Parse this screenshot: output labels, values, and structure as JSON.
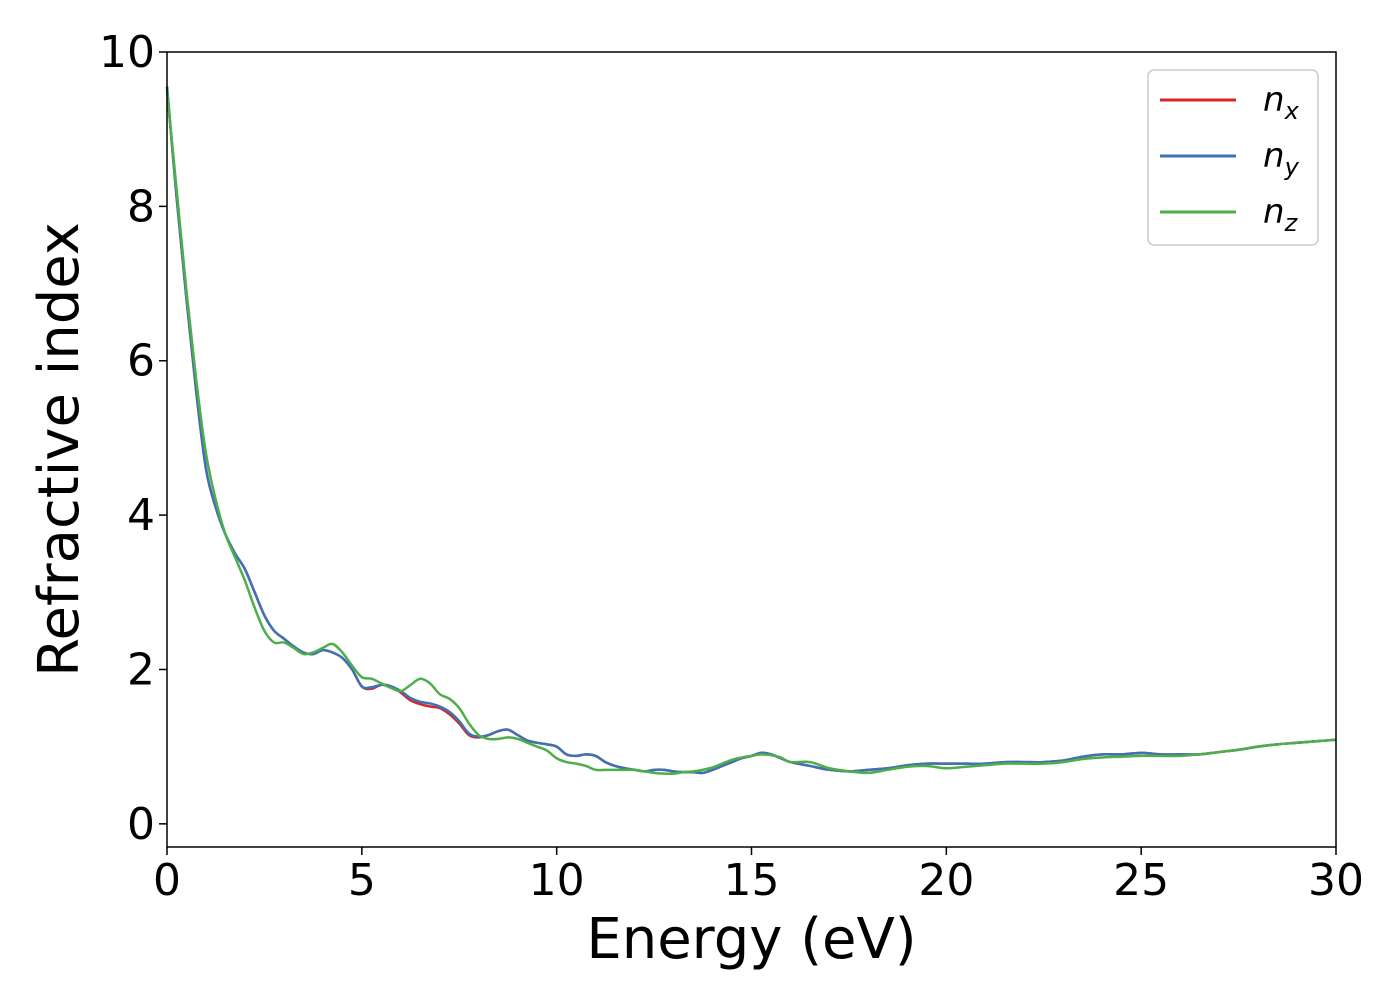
{
  "chart_data": {
    "type": "line",
    "xlabel": "Energy (eV)",
    "ylabel": "Refractive index",
    "xlim": [
      0,
      30
    ],
    "ylim": [
      -0.3,
      10
    ],
    "xticks": [
      "0",
      "5",
      "10",
      "15",
      "20",
      "25",
      "30"
    ],
    "yticks": [
      "0",
      "2",
      "4",
      "6",
      "8",
      "10"
    ],
    "grid": false,
    "legend_position": "top-right",
    "series": [
      {
        "name": "n",
        "subscript": "x",
        "color": "#d62728",
        "x": [
          0,
          0.25,
          0.5,
          0.75,
          1.0,
          1.25,
          1.5,
          1.75,
          2.0,
          2.25,
          2.5,
          2.75,
          3.0,
          3.25,
          3.5,
          3.75,
          4.0,
          4.25,
          4.5,
          4.75,
          5.0,
          5.25,
          5.5,
          5.75,
          6.0,
          6.25,
          6.5,
          6.75,
          7.0,
          7.25,
          7.5,
          7.75,
          8.0,
          8.25,
          8.5,
          8.75,
          9.0,
          9.25,
          9.5,
          9.75,
          10.0,
          10.25,
          10.5,
          10.75,
          11.0,
          11.25,
          11.5,
          11.75,
          12.0,
          12.25,
          12.5,
          12.75,
          13.0,
          13.25,
          13.5,
          13.75,
          14.0,
          14.25,
          14.5,
          14.75,
          15.0,
          15.25,
          15.5,
          15.75,
          16.0,
          16.5,
          17.0,
          17.5,
          18.0,
          18.5,
          19.0,
          19.5,
          20.0,
          20.5,
          21.0,
          21.5,
          22.0,
          22.5,
          23.0,
          23.5,
          24.0,
          24.5,
          25.0,
          25.5,
          26.0,
          26.5,
          27.0,
          27.5,
          28.0,
          28.5,
          29.0,
          29.5,
          30.0
        ],
        "y": [
          9.55,
          8.1,
          6.8,
          5.6,
          4.6,
          4.1,
          3.75,
          3.5,
          3.3,
          3.0,
          2.7,
          2.5,
          2.4,
          2.3,
          2.22,
          2.2,
          2.25,
          2.22,
          2.15,
          2.0,
          1.78,
          1.75,
          1.8,
          1.78,
          1.7,
          1.6,
          1.55,
          1.52,
          1.5,
          1.42,
          1.3,
          1.15,
          1.12,
          1.15,
          1.2,
          1.22,
          1.15,
          1.08,
          1.05,
          1.03,
          1.0,
          0.9,
          0.88,
          0.9,
          0.88,
          0.8,
          0.75,
          0.72,
          0.7,
          0.68,
          0.7,
          0.7,
          0.68,
          0.67,
          0.67,
          0.66,
          0.7,
          0.75,
          0.8,
          0.85,
          0.88,
          0.92,
          0.9,
          0.85,
          0.8,
          0.75,
          0.7,
          0.68,
          0.7,
          0.72,
          0.76,
          0.78,
          0.78,
          0.78,
          0.78,
          0.8,
          0.8,
          0.8,
          0.82,
          0.87,
          0.9,
          0.9,
          0.92,
          0.9,
          0.9,
          0.9,
          0.93,
          0.96,
          1.0,
          1.03,
          1.05,
          1.07,
          1.09
        ]
      },
      {
        "name": "n",
        "subscript": "y",
        "color": "#3d72b8",
        "x": [
          0,
          0.25,
          0.5,
          0.75,
          1.0,
          1.25,
          1.5,
          1.75,
          2.0,
          2.25,
          2.5,
          2.75,
          3.0,
          3.25,
          3.5,
          3.75,
          4.0,
          4.25,
          4.5,
          4.75,
          5.0,
          5.25,
          5.5,
          5.75,
          6.0,
          6.25,
          6.5,
          6.75,
          7.0,
          7.25,
          7.5,
          7.75,
          8.0,
          8.25,
          8.5,
          8.75,
          9.0,
          9.25,
          9.5,
          9.75,
          10.0,
          10.25,
          10.5,
          10.75,
          11.0,
          11.25,
          11.5,
          11.75,
          12.0,
          12.25,
          12.5,
          12.75,
          13.0,
          13.25,
          13.5,
          13.75,
          14.0,
          14.25,
          14.5,
          14.75,
          15.0,
          15.25,
          15.5,
          15.75,
          16.0,
          16.5,
          17.0,
          17.5,
          18.0,
          18.5,
          19.0,
          19.5,
          20.0,
          20.5,
          21.0,
          21.5,
          22.0,
          22.5,
          23.0,
          23.5,
          24.0,
          24.5,
          25.0,
          25.5,
          26.0,
          26.5,
          27.0,
          27.5,
          28.0,
          28.5,
          29.0,
          29.5,
          30.0
        ],
        "y": [
          9.55,
          8.1,
          6.8,
          5.6,
          4.6,
          4.1,
          3.75,
          3.5,
          3.3,
          3.0,
          2.7,
          2.5,
          2.4,
          2.3,
          2.22,
          2.2,
          2.25,
          2.22,
          2.15,
          2.0,
          1.78,
          1.77,
          1.8,
          1.78,
          1.72,
          1.63,
          1.58,
          1.56,
          1.52,
          1.45,
          1.33,
          1.17,
          1.13,
          1.15,
          1.2,
          1.22,
          1.15,
          1.08,
          1.05,
          1.03,
          1.0,
          0.9,
          0.88,
          0.9,
          0.88,
          0.8,
          0.75,
          0.72,
          0.7,
          0.68,
          0.7,
          0.7,
          0.68,
          0.67,
          0.67,
          0.66,
          0.7,
          0.75,
          0.8,
          0.85,
          0.88,
          0.92,
          0.9,
          0.85,
          0.8,
          0.75,
          0.7,
          0.68,
          0.7,
          0.72,
          0.76,
          0.78,
          0.78,
          0.78,
          0.78,
          0.8,
          0.8,
          0.8,
          0.82,
          0.87,
          0.9,
          0.9,
          0.92,
          0.9,
          0.9,
          0.9,
          0.93,
          0.96,
          1.0,
          1.03,
          1.05,
          1.07,
          1.09
        ]
      },
      {
        "name": "n",
        "subscript": "z",
        "color": "#4daf4a",
        "x": [
          0,
          0.25,
          0.5,
          0.75,
          1.0,
          1.25,
          1.5,
          1.75,
          2.0,
          2.25,
          2.5,
          2.75,
          3.0,
          3.25,
          3.5,
          3.75,
          4.0,
          4.25,
          4.5,
          4.75,
          5.0,
          5.25,
          5.5,
          5.75,
          6.0,
          6.25,
          6.5,
          6.75,
          7.0,
          7.25,
          7.5,
          7.75,
          8.0,
          8.25,
          8.5,
          8.75,
          9.0,
          9.25,
          9.5,
          9.75,
          10.0,
          10.25,
          10.5,
          10.75,
          11.0,
          11.25,
          11.5,
          11.75,
          12.0,
          12.25,
          12.5,
          12.75,
          13.0,
          13.25,
          13.5,
          13.75,
          14.0,
          14.25,
          14.5,
          14.75,
          15.0,
          15.25,
          15.5,
          15.75,
          16.0,
          16.5,
          17.0,
          17.5,
          18.0,
          18.5,
          19.0,
          19.5,
          20.0,
          20.5,
          21.0,
          21.5,
          22.0,
          22.5,
          23.0,
          23.5,
          24.0,
          24.5,
          25.0,
          25.5,
          26.0,
          26.5,
          27.0,
          27.5,
          28.0,
          28.5,
          29.0,
          29.5,
          30.0
        ],
        "y": [
          9.5,
          8.2,
          6.9,
          5.75,
          4.8,
          4.2,
          3.75,
          3.45,
          3.15,
          2.8,
          2.5,
          2.35,
          2.35,
          2.28,
          2.2,
          2.22,
          2.28,
          2.33,
          2.22,
          2.05,
          1.9,
          1.88,
          1.82,
          1.76,
          1.72,
          1.8,
          1.88,
          1.82,
          1.68,
          1.62,
          1.5,
          1.3,
          1.15,
          1.1,
          1.1,
          1.12,
          1.1,
          1.05,
          1.0,
          0.95,
          0.85,
          0.8,
          0.78,
          0.75,
          0.7,
          0.7,
          0.7,
          0.7,
          0.7,
          0.68,
          0.66,
          0.65,
          0.65,
          0.67,
          0.68,
          0.7,
          0.73,
          0.78,
          0.83,
          0.86,
          0.88,
          0.9,
          0.89,
          0.86,
          0.8,
          0.8,
          0.72,
          0.68,
          0.66,
          0.7,
          0.74,
          0.75,
          0.72,
          0.74,
          0.76,
          0.78,
          0.78,
          0.78,
          0.8,
          0.84,
          0.86,
          0.87,
          0.88,
          0.88,
          0.88,
          0.9,
          0.93,
          0.96,
          1.0,
          1.03,
          1.05,
          1.07,
          1.09
        ]
      }
    ]
  }
}
